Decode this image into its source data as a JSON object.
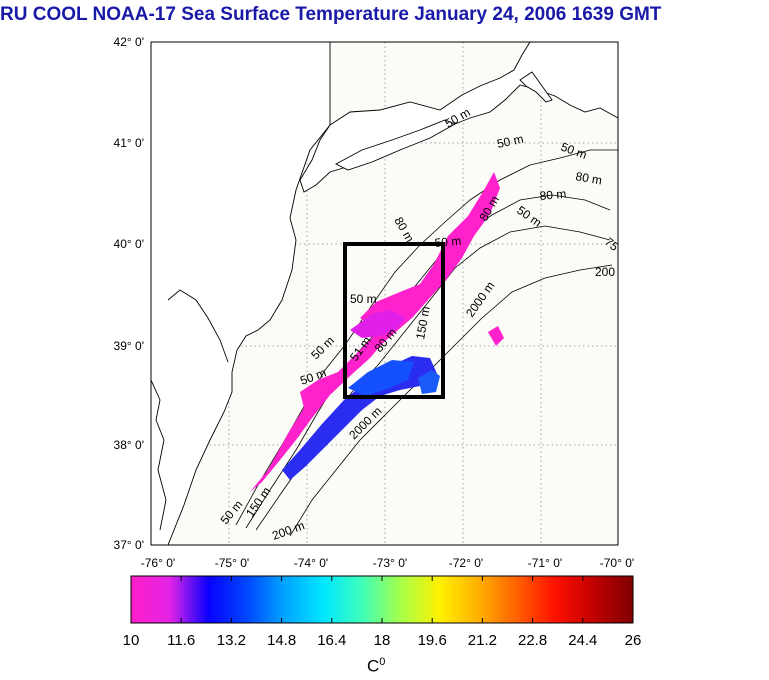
{
  "title": "RU COOL  NOAA-17 Sea Surface Temperature January 24, 2006 1639 GMT",
  "map": {
    "lat_ticks": [
      "42° 0'",
      "41° 0'",
      "40° 0'",
      "39° 0'",
      "38° 0'",
      "37° 0'"
    ],
    "lon_ticks": [
      "-76° 0'",
      "-75° 0'",
      "-74° 0'",
      "-73° 0'",
      "-72° 0'",
      "-71° 0'",
      "-70° 0'"
    ],
    "lat_range": [
      37,
      42
    ],
    "lon_range": [
      -76,
      -70
    ],
    "study_box": {
      "lon_min": -73.5,
      "lon_max": -72.2,
      "lat_min": 38.5,
      "lat_max": 40.0
    },
    "contour_labels": [
      "50 m",
      "50 m",
      "50 m",
      "80 m",
      "80 m",
      "50 m",
      "75",
      "200",
      "50 m",
      "80 m",
      "150 m",
      "2000 m",
      "50 m",
      "51 m",
      "80 m",
      "50 m",
      "2000 m",
      "50 m",
      "150 m",
      "200 m",
      "50 m",
      "80 m"
    ],
    "land_color": "#ffffff",
    "sea_color": "#fbfbf8"
  },
  "colorbar": {
    "ticks": [
      "10",
      "11.6",
      "13.2",
      "14.8",
      "16.4",
      "18",
      "19.6",
      "21.2",
      "22.8",
      "24.4",
      "26"
    ],
    "units": "C",
    "units_sup": "0",
    "range": [
      10,
      26
    ],
    "colors": [
      "#ff1ec8",
      "#e324e6",
      "#0a00ff",
      "#0046ff",
      "#00a6ff",
      "#00e8ff",
      "#40ffb8",
      "#a8ff48",
      "#fff000",
      "#ffb000",
      "#ff6000",
      "#ff1000",
      "#c00000",
      "#800000"
    ]
  }
}
